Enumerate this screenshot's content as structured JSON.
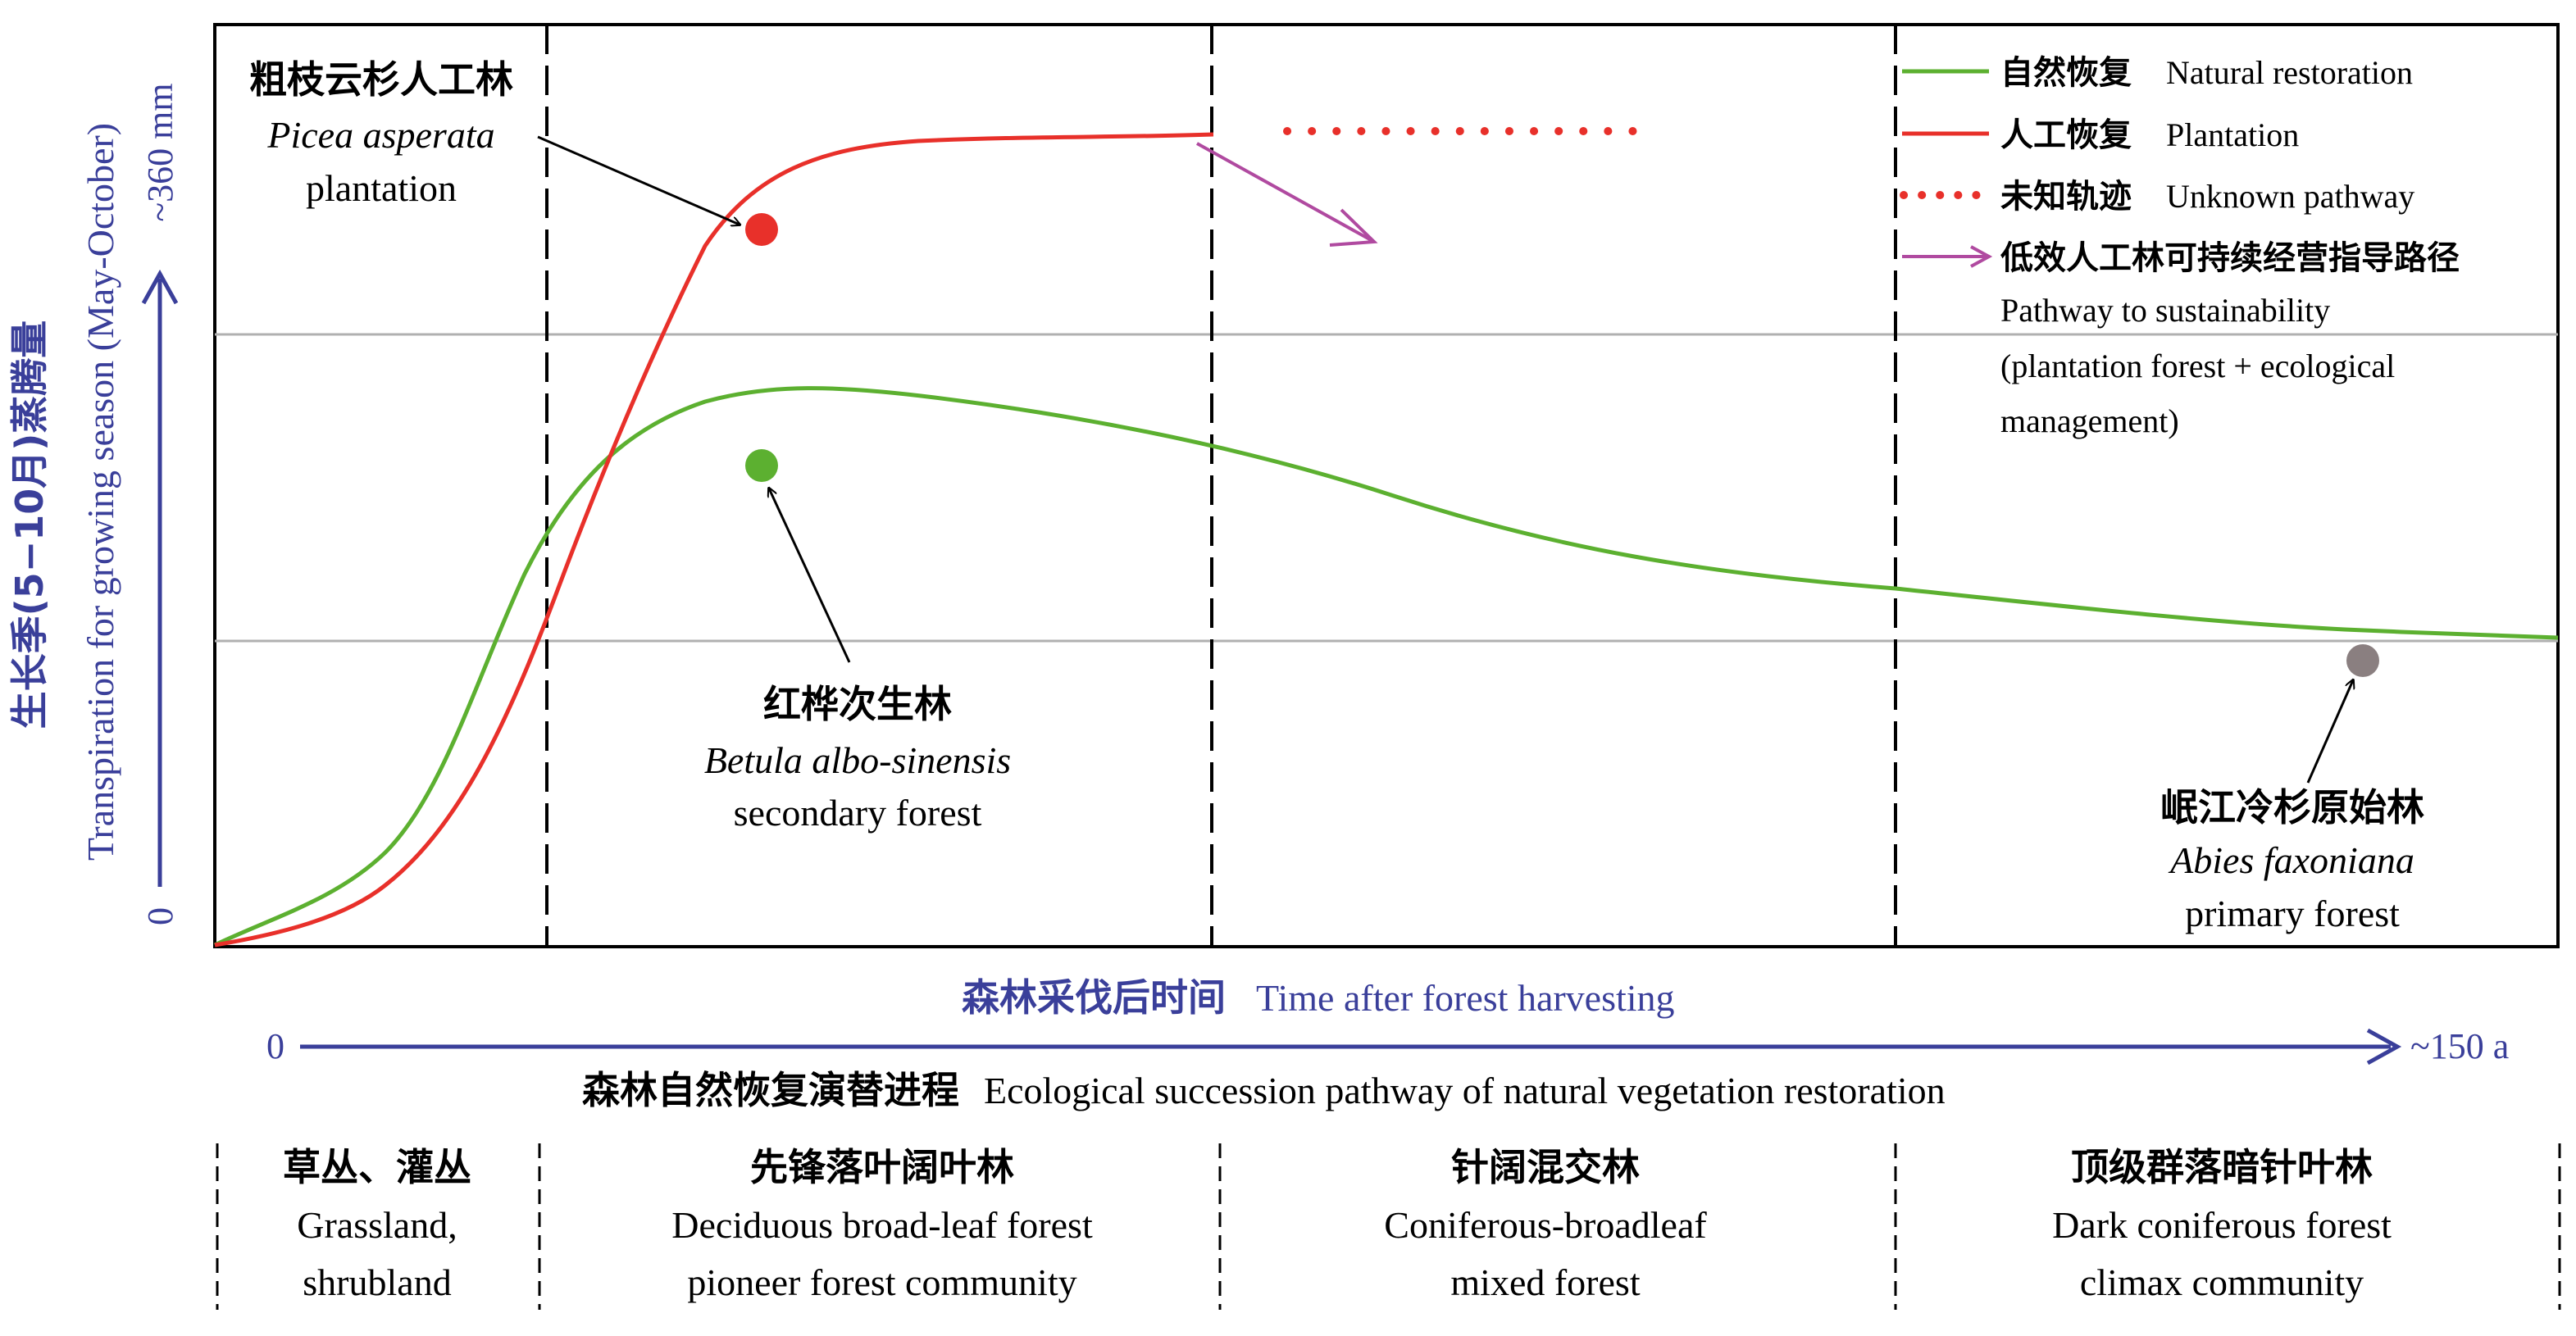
{
  "colors": {
    "natural": "#5cb030",
    "plantation": "#e8302a",
    "unknown": "#e8302a",
    "pathway": "#b04aa0",
    "axis_blue": "#3a3f9a",
    "primary_dot": "#8a7f80",
    "grid": "#b0b0b0",
    "frame": "#000000"
  },
  "y_axis": {
    "label_cn": "生长季(5−10月)蒸腾量",
    "label_en": "Transpiration for growing season (May-October)",
    "min_label": "0",
    "max_label": "~360 mm"
  },
  "x_axis": {
    "label_cn": "森林采伐后时间",
    "label_en": "Time after forest harvesting",
    "min_label": "0",
    "max_label": "~150 a"
  },
  "legend": {
    "natural_cn": "自然恢复",
    "natural_en": "Natural restoration",
    "plantation_cn": "人工恢复",
    "plantation_en": "Plantation",
    "unknown_cn": "未知轨迹",
    "unknown_en": "Unknown pathway",
    "pathway_cn": "低效人工林可持续经营指导路径",
    "pathway_en_1": "Pathway to sustainability",
    "pathway_en_2": "(plantation forest + ecological",
    "pathway_en_3": "management)"
  },
  "annotations": {
    "plantation_cn": "粗枝云杉人工林",
    "plantation_latin": "Picea asperata",
    "plantation_en": "plantation",
    "secondary_cn": "红桦次生林",
    "secondary_latin": "Betula albo-sinensis",
    "secondary_en": "secondary forest",
    "primary_cn": "岷江冷杉原始林",
    "primary_latin": "Abies faxoniana",
    "primary_en": "primary forest"
  },
  "succession": {
    "title_cn": "森林自然恢复演替进程",
    "title_en": "Ecological succession pathway of natural vegetation restoration",
    "stages": [
      {
        "cn": "草丛、灌丛",
        "en_1": "Grassland,",
        "en_2": "shrubland"
      },
      {
        "cn": "先锋落叶阔叶林",
        "en_1": "Deciduous broad-leaf forest",
        "en_2": "pioneer forest community"
      },
      {
        "cn": "针阔混交林",
        "en_1": "Coniferous-broadleaf",
        "en_2": "mixed forest"
      },
      {
        "cn": "顶级群落暗针叶林",
        "en_1": "Dark coniferous forest",
        "en_2": "climax community"
      }
    ]
  }
}
